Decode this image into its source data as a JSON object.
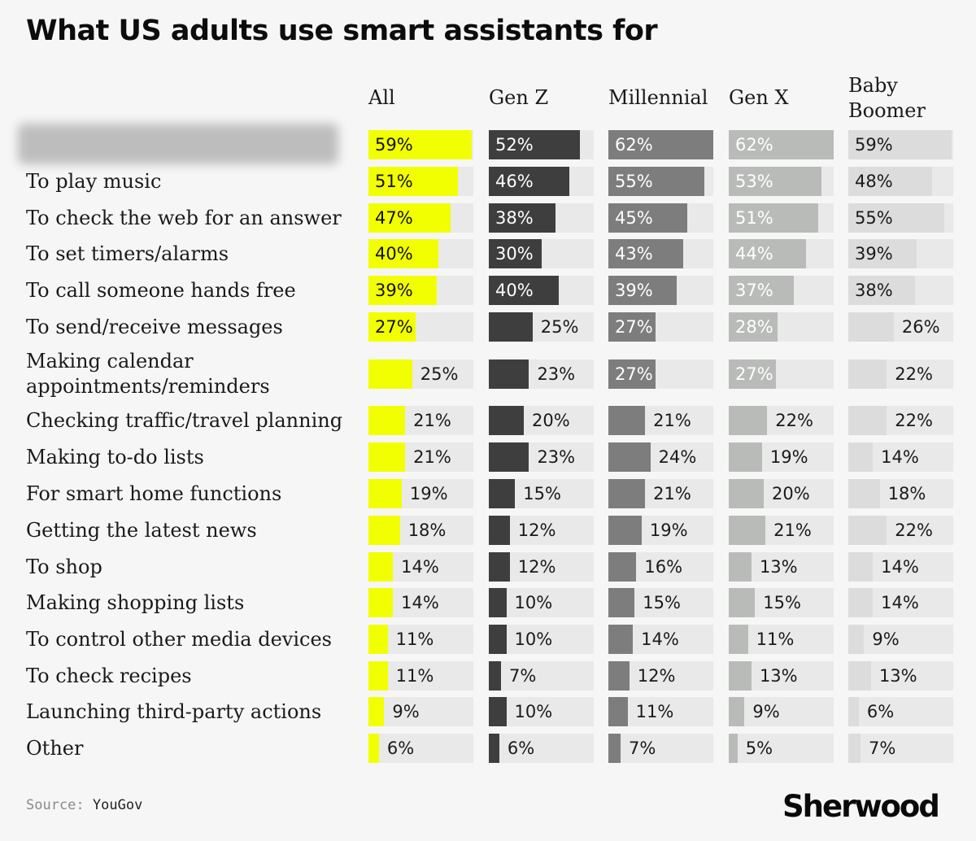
{
  "title": "What US adults use smart assistants for",
  "source_label": "Source:",
  "source_value": "YouGov",
  "brand": "Sherwood",
  "colors": {
    "All": "#f2ff00",
    "Gen Z": "#3e3e3e",
    "Millennial": "#7d7d7d",
    "Gen X": "#b9bbb9",
    "Baby Boomer": "#dcdcdc",
    "track": "#e9e9e9"
  },
  "chart_data": {
    "type": "bar",
    "title": "What US adults use smart assistants for",
    "groups": [
      "All",
      "Gen Z",
      "Millennial",
      "Gen X",
      "Baby Boomer"
    ],
    "categories": [
      "",
      "To play music",
      "To check the web for an answer",
      "To set timers/alarms",
      "To call someone hands free",
      "To send/receive messages",
      "Making calendar appointments/reminders",
      "Checking traffic/travel planning",
      "Making to-do lists",
      "For smart home functions",
      "Getting the latest news",
      "To shop",
      "Making shopping lists",
      "To control other media devices",
      "To check recipes",
      "Launching third-party actions",
      "Other"
    ],
    "unit": "%",
    "series": [
      {
        "name": "All",
        "values": [
          59,
          51,
          47,
          40,
          39,
          27,
          25,
          21,
          21,
          19,
          18,
          14,
          14,
          11,
          11,
          9,
          6
        ]
      },
      {
        "name": "Gen Z",
        "values": [
          52,
          46,
          38,
          30,
          40,
          25,
          23,
          20,
          23,
          15,
          12,
          12,
          10,
          10,
          7,
          10,
          6
        ]
      },
      {
        "name": "Millennial",
        "values": [
          62,
          55,
          45,
          43,
          39,
          27,
          27,
          21,
          24,
          21,
          19,
          16,
          15,
          14,
          12,
          11,
          7
        ]
      },
      {
        "name": "Gen X",
        "values": [
          62,
          53,
          51,
          44,
          37,
          28,
          27,
          22,
          19,
          20,
          21,
          13,
          15,
          11,
          13,
          9,
          5
        ]
      },
      {
        "name": "Baby Boomer",
        "values": [
          59,
          48,
          55,
          39,
          38,
          26,
          22,
          22,
          14,
          18,
          22,
          14,
          14,
          9,
          13,
          6,
          7
        ]
      }
    ]
  }
}
